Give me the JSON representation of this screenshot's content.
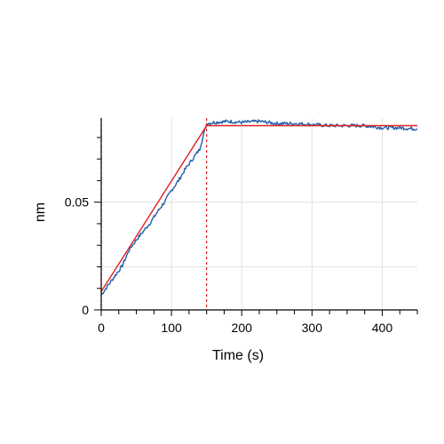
{
  "chart_data": {
    "type": "line",
    "xlabel": "Time (s)",
    "ylabel": "nm",
    "xlim": [
      0,
      450
    ],
    "ylim": [
      0,
      0.089
    ],
    "x_ticks": [
      0,
      100,
      200,
      300,
      400
    ],
    "x_tick_labels": [
      "0",
      "100",
      "200",
      "300",
      "400"
    ],
    "x_minor_step": 25,
    "y_ticks": [
      0,
      0.05
    ],
    "y_tick_labels": [
      "0",
      "0.05"
    ],
    "y_minor_step": 0.01,
    "grid": true,
    "legend": "none",
    "series": [
      {
        "role": "measured",
        "color": "#1f5fa8",
        "x": [
          0,
          10,
          20,
          30,
          40,
          50,
          60,
          70,
          80,
          90,
          100,
          110,
          120,
          130,
          140,
          150,
          160,
          180,
          200,
          225,
          250,
          275,
          300,
          325,
          350,
          375,
          400,
          425,
          450
        ],
        "y": [
          0.007,
          0.0115,
          0.016,
          0.0205,
          0.028,
          0.0325,
          0.0365,
          0.0405,
          0.0455,
          0.05,
          0.0555,
          0.06,
          0.0655,
          0.07,
          0.0745,
          0.0865,
          0.087,
          0.0875,
          0.087,
          0.0875,
          0.0865,
          0.0865,
          0.086,
          0.0855,
          0.0855,
          0.0855,
          0.0845,
          0.0845,
          0.084
        ]
      },
      {
        "role": "fit",
        "color": "#e02020",
        "x": [
          0,
          150,
          450
        ],
        "y": [
          0.0085,
          0.0855,
          0.0855
        ]
      }
    ],
    "vlines": [
      {
        "x": 0,
        "color": "#e02020",
        "style": "dashed"
      },
      {
        "x": 150,
        "color": "#e02020",
        "style": "dashed"
      }
    ]
  }
}
